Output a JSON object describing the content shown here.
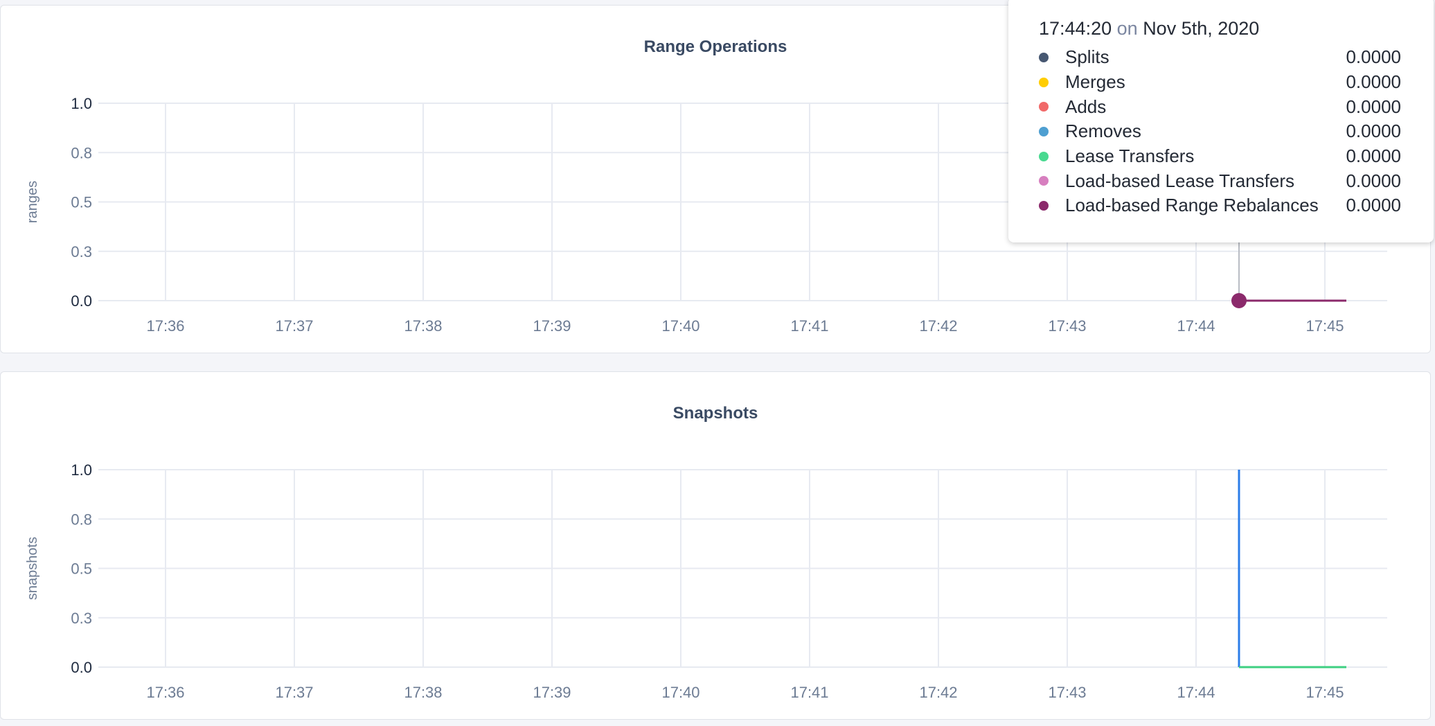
{
  "chart_data": [
    {
      "type": "line",
      "title": "Range Operations",
      "ylabel": "ranges",
      "xlabel": "",
      "ylim": [
        0,
        1
      ],
      "yticks": [
        "0.0",
        "0.3",
        "0.5",
        "0.8",
        "1.0"
      ],
      "xticks": [
        "17:36",
        "17:37",
        "17:38",
        "17:39",
        "17:40",
        "17:41",
        "17:42",
        "17:43",
        "17:44",
        "17:45"
      ],
      "grid": true,
      "series": [
        {
          "name": "Load-based Range Rebalances",
          "color": "#8b2a6b",
          "x": [
            "17:44:20",
            "17:45:10"
          ],
          "y": [
            0,
            0
          ]
        }
      ],
      "hover": {
        "x": "17:44:20"
      }
    },
    {
      "type": "line",
      "title": "Snapshots",
      "ylabel": "snapshots",
      "xlabel": "",
      "ylim": [
        0,
        1
      ],
      "yticks": [
        "0.0",
        "0.3",
        "0.5",
        "0.8",
        "1.0"
      ],
      "xticks": [
        "17:36",
        "17:37",
        "17:38",
        "17:39",
        "17:40",
        "17:41",
        "17:42",
        "17:43",
        "17:44",
        "17:45"
      ],
      "grid": true,
      "series": [
        {
          "color": "#2c7de8",
          "x": [
            "17:44:20",
            "17:44:20"
          ],
          "y": [
            1,
            0
          ]
        },
        {
          "color": "#3ecf81",
          "x": [
            "17:44:20",
            "17:45:10"
          ],
          "y": [
            0,
            0
          ]
        }
      ]
    }
  ],
  "tooltip": {
    "time": "17:44:20",
    "on": "on",
    "date": "Nov 5th, 2020",
    "rows": [
      {
        "label": "Splits",
        "value": "0.0000",
        "color": "#475872"
      },
      {
        "label": "Merges",
        "value": "0.0000",
        "color": "#ffcd02"
      },
      {
        "label": "Adds",
        "value": "0.0000",
        "color": "#f16969"
      },
      {
        "label": "Removes",
        "value": "0.0000",
        "color": "#4e9fd1"
      },
      {
        "label": "Lease Transfers",
        "value": "0.0000",
        "color": "#49d990"
      },
      {
        "label": "Load-based Lease Transfers",
        "value": "0.0000",
        "color": "#d77fbf"
      },
      {
        "label": "Load-based Range Rebalances",
        "value": "0.0000",
        "color": "#8b2a6b"
      }
    ]
  }
}
